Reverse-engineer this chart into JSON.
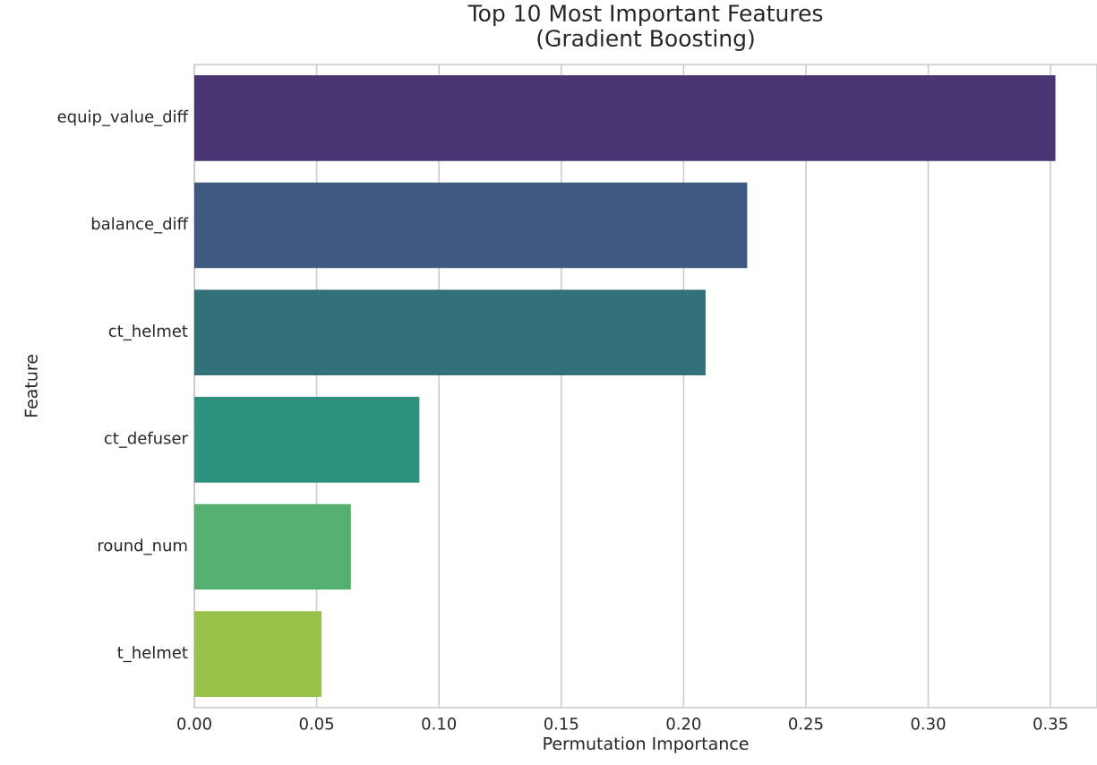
{
  "chart_data": {
    "type": "bar",
    "orientation": "horizontal",
    "title": "Top 10 Most Important Features",
    "subtitle": "(Gradient Boosting)",
    "xlabel": "Permutation Importance",
    "ylabel": "Feature",
    "categories": [
      "equip_value_diff",
      "balance_diff",
      "ct_helmet",
      "ct_defuser",
      "round_num",
      "t_helmet"
    ],
    "values": [
      0.352,
      0.226,
      0.209,
      0.092,
      0.064,
      0.052
    ],
    "colors": [
      "#4a3673",
      "#3f5a80",
      "#33717a",
      "#2e917d",
      "#55b06f",
      "#97c34a"
    ],
    "xlim": [
      0,
      0.369
    ],
    "xticks": [
      {
        "value": 0,
        "label": "0.00"
      },
      {
        "value": 0.05,
        "label": "0.05"
      },
      {
        "value": 0.1,
        "label": "0.10"
      },
      {
        "value": 0.15,
        "label": "0.15"
      },
      {
        "value": 0.2,
        "label": "0.20"
      },
      {
        "value": 0.25,
        "label": "0.25"
      },
      {
        "value": 0.3,
        "label": "0.30"
      },
      {
        "value": 0.35,
        "label": "0.35"
      }
    ],
    "grid": "x"
  }
}
